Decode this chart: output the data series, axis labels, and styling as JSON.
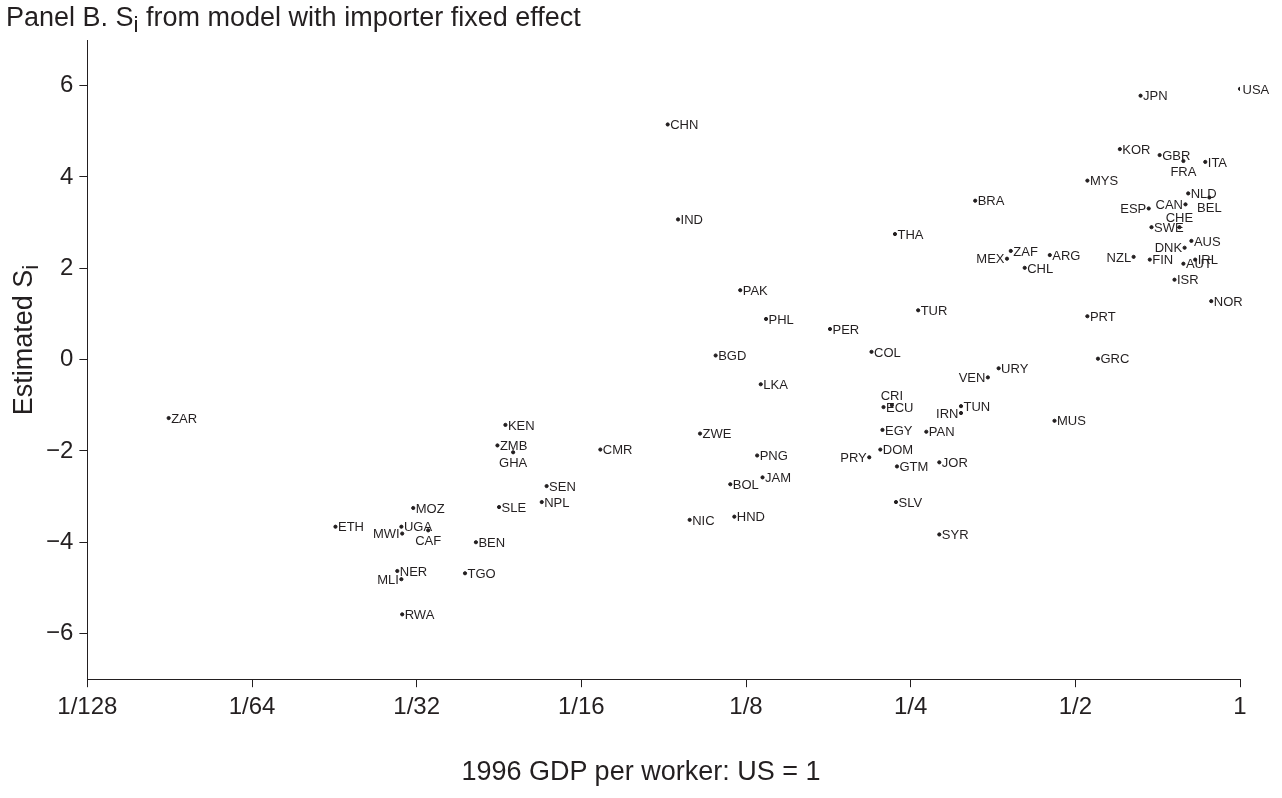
{
  "chart_data": {
    "type": "scatter",
    "title": "Panel B. S$_{i}$ from model with importer fixed effect",
    "xlabel": "1996 GDP per worker: US = 1",
    "ylabel": "Estimated S$_{i}$",
    "log": "x",
    "grid": false,
    "legend": false,
    "marker": "circle",
    "xlim": [
      0.0078125,
      1
    ],
    "xticks": [
      {
        "value": 0.0078125,
        "label": "1/128"
      },
      {
        "value": 0.015625,
        "label": "1/64"
      },
      {
        "value": 0.03125,
        "label": "1/32"
      },
      {
        "value": 0.0625,
        "label": "1/16"
      },
      {
        "value": 0.125,
        "label": "1/8"
      },
      {
        "value": 0.25,
        "label": "1/4"
      },
      {
        "value": 0.5,
        "label": "1/2"
      },
      {
        "value": 1,
        "label": "1"
      }
    ],
    "ylim": [
      -7,
      7
    ],
    "yticks": [
      -6,
      -4,
      -2,
      0,
      2,
      4,
      6
    ],
    "series": [
      {
        "color": "#231f20",
        "x": [
          0.011,
          0.0222,
          0.0308,
          0.0293,
          0.0294,
          0.0328,
          0.0288,
          0.0293,
          0.0294,
          0.0401,
          0.0383,
          0.0442,
          0.0454,
          0.0439,
          0.0469,
          0.054,
          0.0529,
          0.0677,
          0.0899,
          0.0939,
          0.122,
          0.136,
          0.11,
          0.133,
          0.178,
          0.212,
          0.234,
          0.258,
          0.328,
          0.381,
          0.375,
          0.404,
          0.449,
          0.362,
          0.346,
          0.103,
          0.131,
          0.134,
          0.117,
          0.0986,
          0.119,
          0.223,
          0.231,
          0.222,
          0.22,
          0.21,
          0.236,
          0.267,
          0.282,
          0.235,
          0.282,
          0.309,
          0.309,
          0.458,
          0.526,
          0.55,
          0.526,
          0.603,
          0.658,
          0.713,
          0.788,
          0.864,
          1,
          0.804,
          0.879,
          0.795,
          0.681,
          0.689,
          0.775,
          0.815,
          0.792,
          0.639,
          0.684,
          0.788,
          0.828,
          0.759,
          0.886
        ],
        "values": [
          -1.28,
          -3.66,
          -3.25,
          -3.66,
          -3.81,
          -3.74,
          -4.63,
          -4.81,
          -5.58,
          -4.0,
          -4.68,
          -3.23,
          -1.43,
          -1.88,
          -2.03,
          -2.77,
          -3.12,
          -1.97,
          5.15,
          3.07,
          1.52,
          0.89,
          0.09,
          -0.54,
          0.67,
          0.17,
          2.75,
          1.08,
          3.48,
          2.38,
          2.21,
          2.01,
          2.29,
          -0.19,
          -0.39,
          -1.62,
          -2.1,
          -2.58,
          -2.73,
          -3.51,
          -3.44,
          -1.04,
          -1.0,
          -1.54,
          -1.97,
          -2.14,
          -2.34,
          -1.58,
          -2.25,
          -3.12,
          -3.83,
          -1.02,
          -1.17,
          -1.34,
          0.95,
          0.02,
          3.92,
          4.61,
          5.78,
          4.48,
          4.35,
          4.33,
          5.93,
          3.64,
          3.55,
          3.4,
          3.31,
          2.9,
          2.9,
          2.6,
          2.45,
          2.25,
          2.19,
          2.1,
          2.19,
          1.75,
          1.28
        ],
        "value_labels": [
          "ZAR",
          "ETH",
          "MOZ",
          "UGA",
          "MWI",
          "CAF",
          "NER",
          "MLI",
          "RWA",
          "BEN",
          "TGO",
          "SLE",
          "KEN",
          "ZMB",
          "GHA",
          "SEN",
          "NPL",
          "CMR",
          "CHN",
          "IND",
          "PAK",
          "PHL",
          "BGD",
          "LKA",
          "PER",
          "COL",
          "THA",
          "TUR",
          "BRA",
          "ZAF",
          "MEX",
          "CHL",
          "ARG",
          "URY",
          "VEN",
          "ZWE",
          "PNG",
          "JAM",
          "BOL",
          "NIC",
          "HND",
          "ECU",
          "CRI",
          "EGY",
          "DOM",
          "PRY",
          "GTM",
          "PAN",
          "JOR",
          "SLV",
          "SYR",
          "TUN",
          "IRN",
          "MUS",
          "PRT",
          "GRC",
          "MYS",
          "KOR",
          "JPN",
          "GBR",
          "FRA",
          "ITA",
          "USA",
          "NLD",
          "BEL",
          "CAN",
          "ESP",
          "SWE",
          "CHE",
          "AUS",
          "DNK",
          "NZL",
          "FIN",
          "AUT",
          "IRL",
          "ISR",
          "NOR"
        ]
      }
    ]
  }
}
